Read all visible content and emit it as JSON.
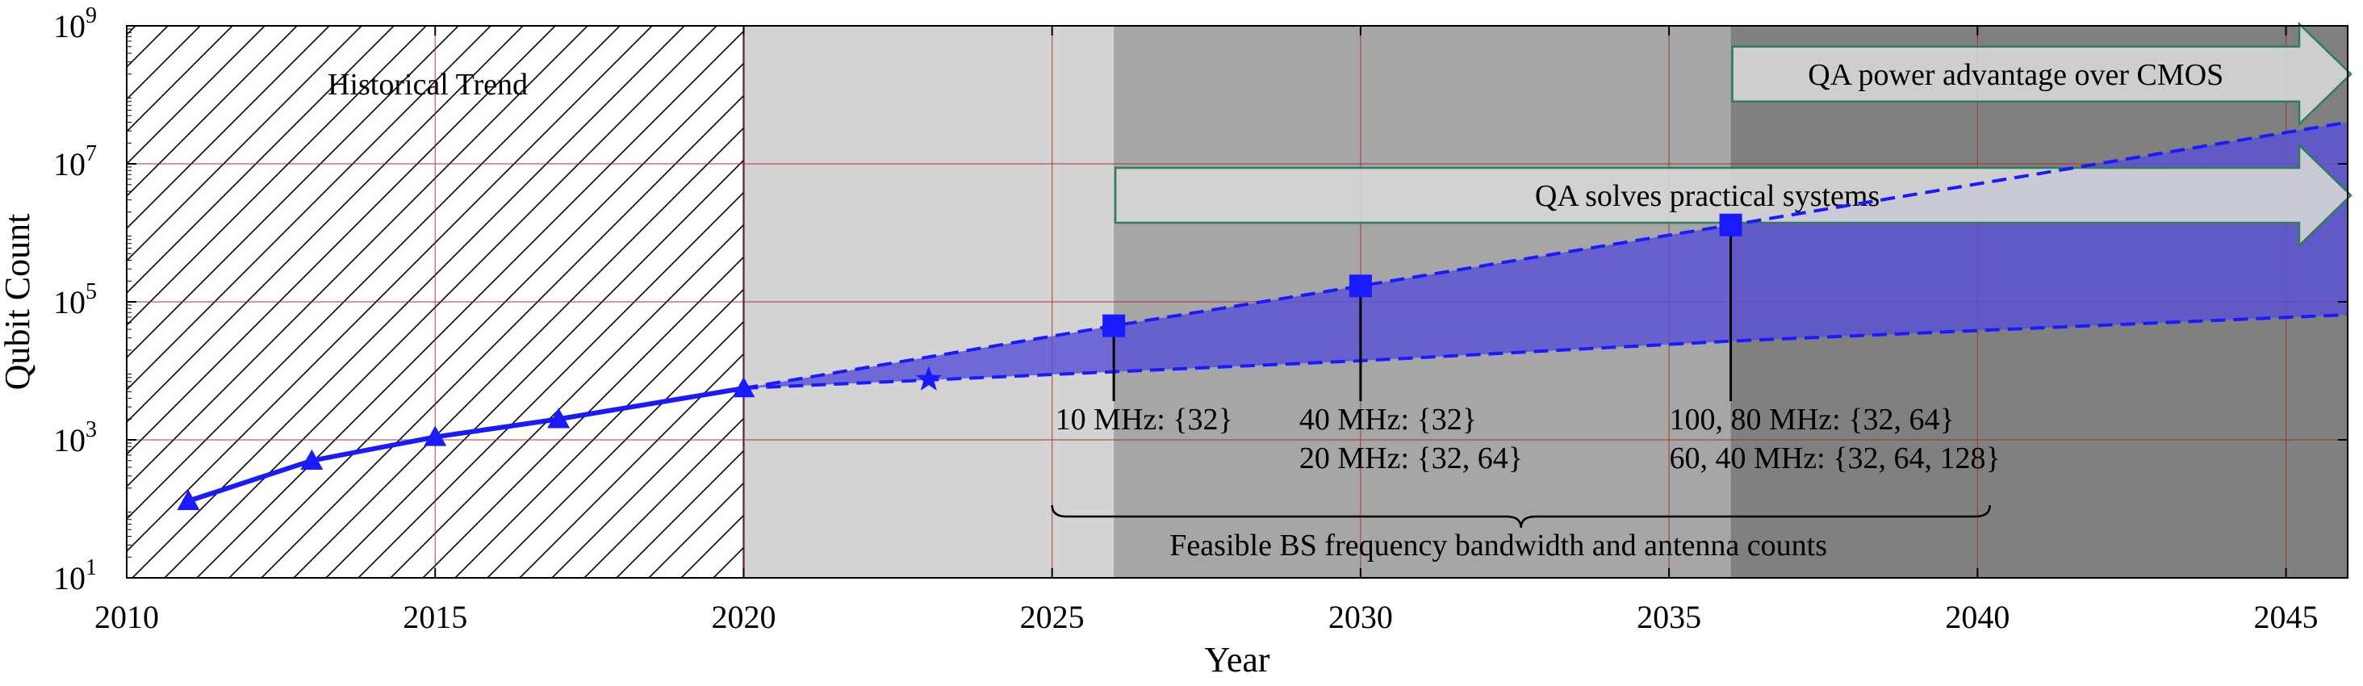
{
  "chart_data": {
    "type": "line",
    "xlabel": "Year",
    "ylabel": "Qubit Count",
    "xlim": [
      2010,
      2046
    ],
    "ylim": [
      10,
      1000000000
    ],
    "yscale": "log",
    "grid": true,
    "x_ticks": [
      2010,
      2015,
      2020,
      2025,
      2030,
      2035,
      2040,
      2045
    ],
    "y_ticks": [
      {
        "value": 10,
        "base": "10",
        "exp": "1"
      },
      {
        "value": 1000,
        "base": "10",
        "exp": "3"
      },
      {
        "value": 100000,
        "base": "10",
        "exp": "5"
      },
      {
        "value": 10000000,
        "base": "10",
        "exp": "7"
      },
      {
        "value": 1000000000,
        "base": "10",
        "exp": "9"
      }
    ],
    "regions": [
      {
        "name": "historical",
        "x_start": 2010,
        "x_end": 2020,
        "pattern": "hatch",
        "label": "Historical Trend"
      },
      {
        "name": "near-term",
        "x_start": 2020,
        "x_end": 2026,
        "color": "#d3d3d3"
      },
      {
        "name": "mid-term",
        "x_start": 2026,
        "x_end": 2036,
        "color": "#a6a6a6"
      },
      {
        "name": "long-term",
        "x_start": 2036,
        "x_end": 2046,
        "color": "#808080"
      }
    ],
    "series": [
      {
        "kind": "historical",
        "color": "#1a1aff",
        "marker": "triangle",
        "points": [
          {
            "x": 2011,
            "y": 130
          },
          {
            "x": 2013,
            "y": 500
          },
          {
            "x": 2015,
            "y": 1100
          },
          {
            "x": 2017,
            "y": 2000
          },
          {
            "x": 2020,
            "y": 5600
          }
        ]
      },
      {
        "kind": "current",
        "color": "#1a1aff",
        "marker": "star",
        "points": [
          {
            "x": 2023,
            "y": 7500
          }
        ]
      },
      {
        "kind": "projection-upper",
        "color": "#1a1aff",
        "marker": "square",
        "dashed": true,
        "points": [
          {
            "x": 2020,
            "y": 5600
          },
          {
            "x": 2026,
            "y": 45000
          },
          {
            "x": 2030,
            "y": 170000
          },
          {
            "x": 2036,
            "y": 1300000
          },
          {
            "x": 2046,
            "y": 40000000
          }
        ]
      },
      {
        "kind": "projection-lower",
        "color": "#1a1aff",
        "dashed": true,
        "points": [
          {
            "x": 2020,
            "y": 5600
          },
          {
            "x": 2030,
            "y": 14000
          },
          {
            "x": 2036,
            "y": 27000
          },
          {
            "x": 2046,
            "y": 65000
          }
        ]
      }
    ],
    "arrows": [
      {
        "label": "QA power advantage over CMOS",
        "x_start": 2036,
        "x_end": 2046,
        "y": 200000000
      },
      {
        "label": "QA solves practical systems",
        "x_start": 2026,
        "x_end": 2046,
        "y": 3500000
      }
    ],
    "annotations": [
      {
        "x": 2026,
        "y_point": 45000,
        "lines": [
          "10 MHz: {32}"
        ]
      },
      {
        "x": 2030,
        "y_point": 170000,
        "lines": [
          "40 MHz: {32}",
          "20 MHz: {32, 64}"
        ]
      },
      {
        "x": 2036,
        "y_point": 1300000,
        "lines": [
          "100, 80 MHz: {32, 64}",
          "60, 40 MHz: {32, 64, 128}"
        ]
      }
    ],
    "brace": {
      "x_start": 2025,
      "x_end": 2040.2,
      "label": "Feasible BS frequency bandwidth and antenna counts"
    }
  }
}
